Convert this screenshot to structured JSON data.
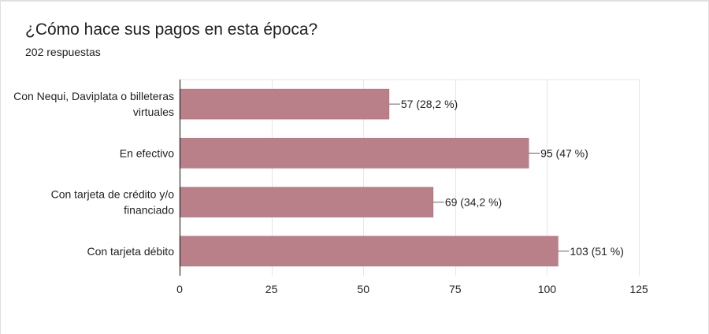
{
  "title": "¿Cómo hace sus pagos en esta época?",
  "subtitle": "202 respuestas",
  "chart_data": {
    "type": "bar",
    "orientation": "horizontal",
    "categories": [
      [
        "Con Nequi, Daviplata o billeteras",
        "virtuales"
      ],
      [
        "En efectivo"
      ],
      [
        "Con tarjeta de crédito y/o",
        "financiado"
      ],
      [
        "Con tarjeta débito"
      ]
    ],
    "values": [
      57,
      95,
      69,
      103
    ],
    "data_labels": [
      "57 (28,2 %)",
      "95 (47 %)",
      "69 (34,2 %)",
      "103 (51 %)"
    ],
    "xlim": [
      0,
      125
    ],
    "xticks": [
      0,
      25,
      50,
      75,
      100,
      125
    ],
    "xtick_labels": [
      "0",
      "25",
      "50",
      "75",
      "100",
      "125"
    ],
    "grid": true,
    "bar_color": "#b9808a"
  }
}
